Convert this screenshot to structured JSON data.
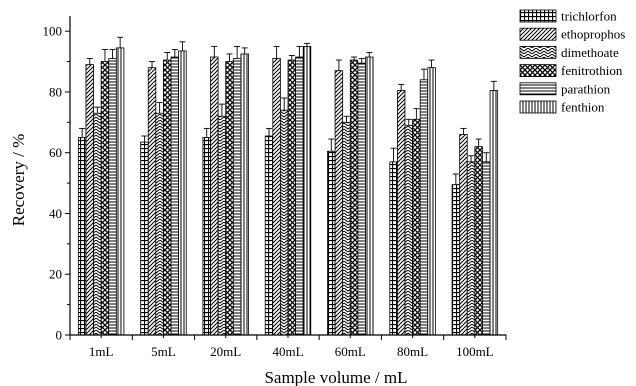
{
  "chart_data": {
    "type": "bar",
    "title": "",
    "xlabel": "Sample volume / mL",
    "ylabel": "Recovery / %",
    "ylim": [
      0,
      105
    ],
    "yticks": [
      0,
      20,
      40,
      60,
      80,
      100
    ],
    "categories": [
      "1mL",
      "5mL",
      "20mL",
      "40mL",
      "60mL",
      "80mL",
      "100mL"
    ],
    "legend_position": "top-right",
    "series": [
      {
        "name": "trichlorfon",
        "pattern": "grid",
        "values": [
          65,
          63.5,
          65,
          65.5,
          60.5,
          57,
          49.5
        ],
        "errors": [
          3,
          2,
          3,
          2.5,
          4,
          4.5,
          3.5
        ]
      },
      {
        "name": "ethoprophos",
        "pattern": "diag-dense",
        "values": [
          89,
          88,
          91.5,
          91,
          87,
          80.5,
          66
        ],
        "errors": [
          2,
          2,
          3.5,
          4,
          3.5,
          2,
          2
        ]
      },
      {
        "name": "dimethoate",
        "pattern": "chevron",
        "values": [
          73,
          73,
          72,
          74,
          70,
          69,
          57
        ],
        "errors": [
          2,
          3.5,
          4,
          4,
          2,
          2,
          2
        ]
      },
      {
        "name": "fenitrothion",
        "pattern": "crosshatch",
        "values": [
          90,
          90.5,
          90,
          90.5,
          90.5,
          71,
          62
        ],
        "errors": [
          4,
          2.5,
          2.5,
          1.5,
          1,
          3.5,
          2.5
        ]
      },
      {
        "name": "parathion",
        "pattern": "horizontal",
        "values": [
          91,
          91.5,
          91,
          91.5,
          89.5,
          84,
          57
        ],
        "errors": [
          3,
          2.5,
          4,
          3.5,
          1.5,
          3.5,
          3
        ]
      },
      {
        "name": "fenthion",
        "pattern": "vertical",
        "values": [
          94.5,
          93.5,
          92.5,
          95,
          91.5,
          88,
          80.5
        ],
        "errors": [
          3.5,
          3,
          2,
          1,
          1.5,
          2.5,
          3
        ]
      }
    ]
  }
}
